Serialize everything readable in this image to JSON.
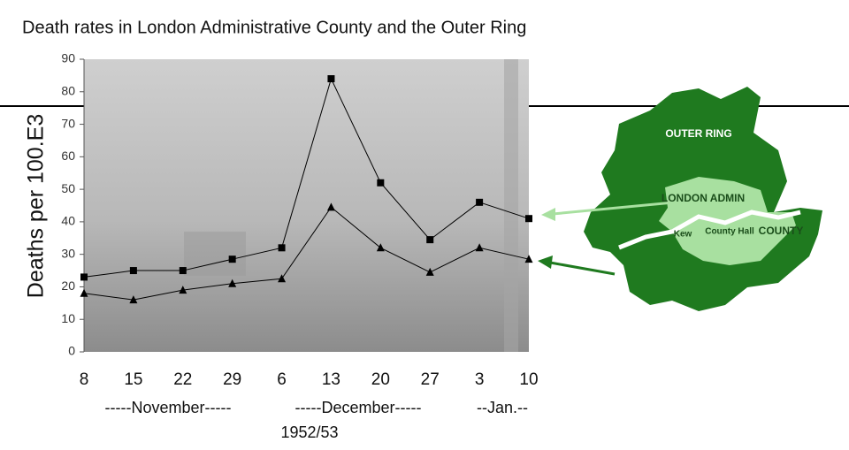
{
  "chart_data": {
    "type": "line",
    "title": "Death rates in London Administrative County and the Outer Ring",
    "y_label": "Deaths per 100.E3",
    "categories": [
      "8",
      "15",
      "22",
      "29",
      "6",
      "13",
      "20",
      "27",
      "3",
      "10"
    ],
    "month_labels": [
      "-----November-----",
      "-----December-----",
      "--Jan.--"
    ],
    "x_label": "1952/53",
    "series": [
      {
        "name": "LONDON ADMIN",
        "color": "#000000",
        "marker": "square",
        "values": [
          23,
          25,
          25,
          28.5,
          32,
          84,
          52,
          34.5,
          46,
          41
        ]
      },
      {
        "name": "OUTER RING",
        "color": "#000000",
        "marker": "triangle",
        "values": [
          18,
          16,
          19,
          21,
          22.5,
          44.5,
          32,
          24.5,
          32,
          28.5
        ]
      }
    ],
    "annotations": [
      "Kew",
      "County Hall",
      "COUNTY"
    ],
    "ylim": [
      0,
      90
    ],
    "yticks": [
      0,
      10,
      20,
      30,
      40,
      50,
      60,
      70,
      80,
      90
    ]
  }
}
